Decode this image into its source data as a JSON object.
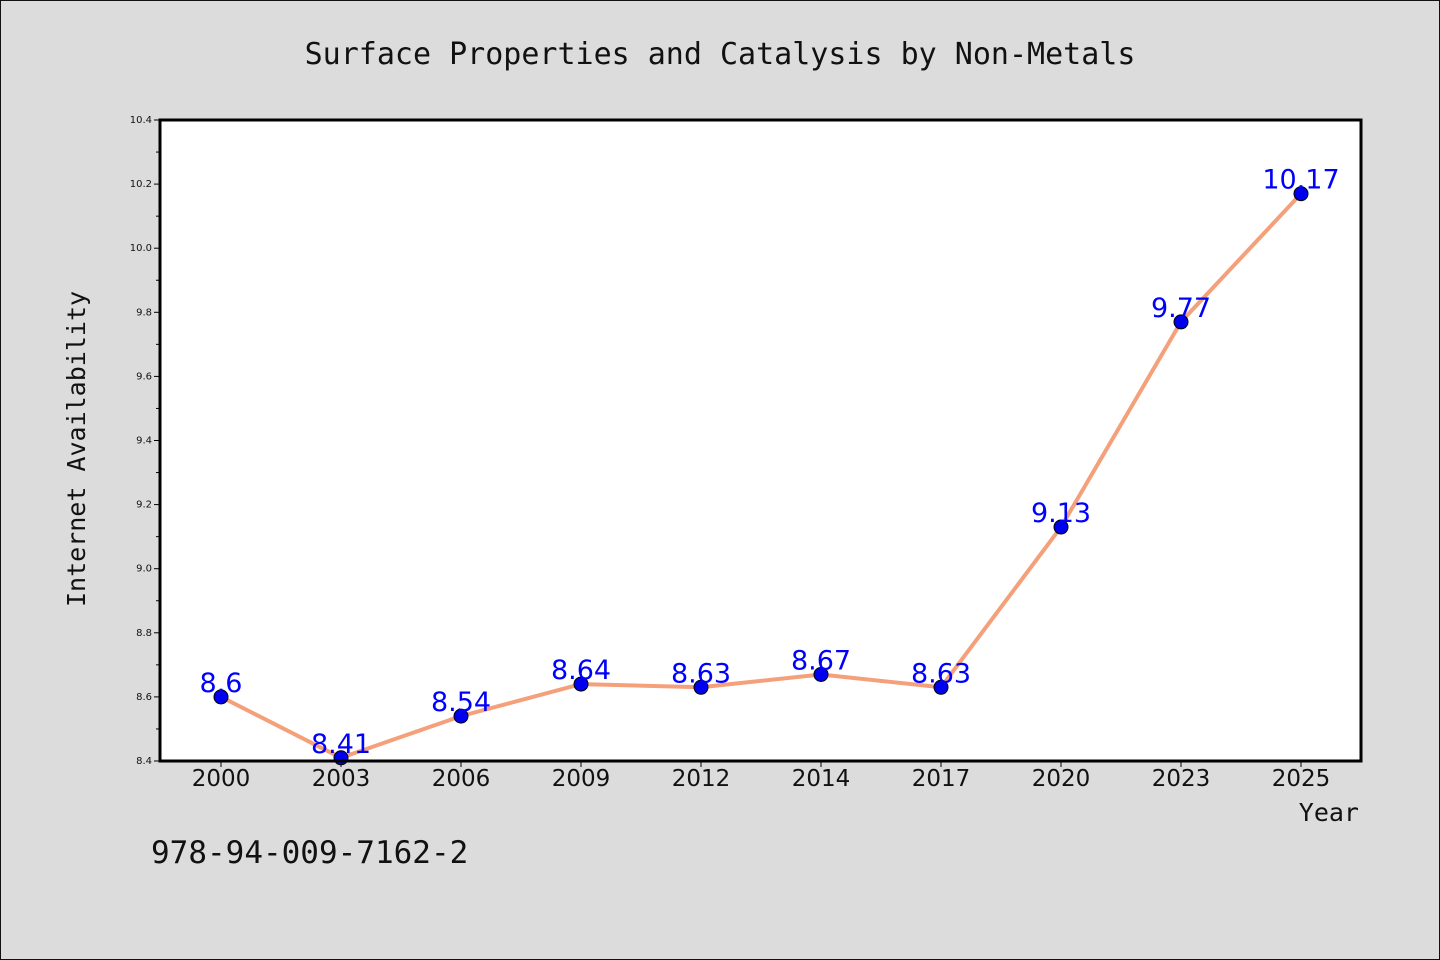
{
  "chart_data": {
    "type": "line",
    "title": "Surface Properties and Catalysis by Non-Metals",
    "xlabel": "Year",
    "ylabel": "Internet Availability",
    "categories": [
      "2000",
      "2003",
      "2006",
      "2009",
      "2012",
      "2014",
      "2017",
      "2020",
      "2023",
      "2025"
    ],
    "series": [
      {
        "values": [
          8.6,
          8.41,
          8.54,
          8.64,
          8.63,
          8.67,
          8.63,
          9.13,
          9.77,
          10.17
        ],
        "data_labels": [
          "8.6",
          "8.41",
          "8.54",
          "8.64",
          "8.63",
          "8.67",
          "8.63",
          "9.13",
          "9.77",
          "10.17"
        ],
        "line_color": "#f4a07a",
        "marker_color": "#0000ee"
      }
    ],
    "ylim": [
      8.4,
      10.4
    ],
    "yticks": [
      "8.4",
      "8.6",
      "8.8",
      "9.0",
      "9.2",
      "9.4",
      "9.6",
      "9.8",
      "10.0",
      "10.2",
      "10.4"
    ],
    "grid": false,
    "data_label_color": "#0000ff"
  },
  "annotation": {
    "isbn": "978-94-009-7162-2"
  },
  "colors": {
    "background": "#dcdcdc",
    "plot_area": "#ffffff"
  }
}
